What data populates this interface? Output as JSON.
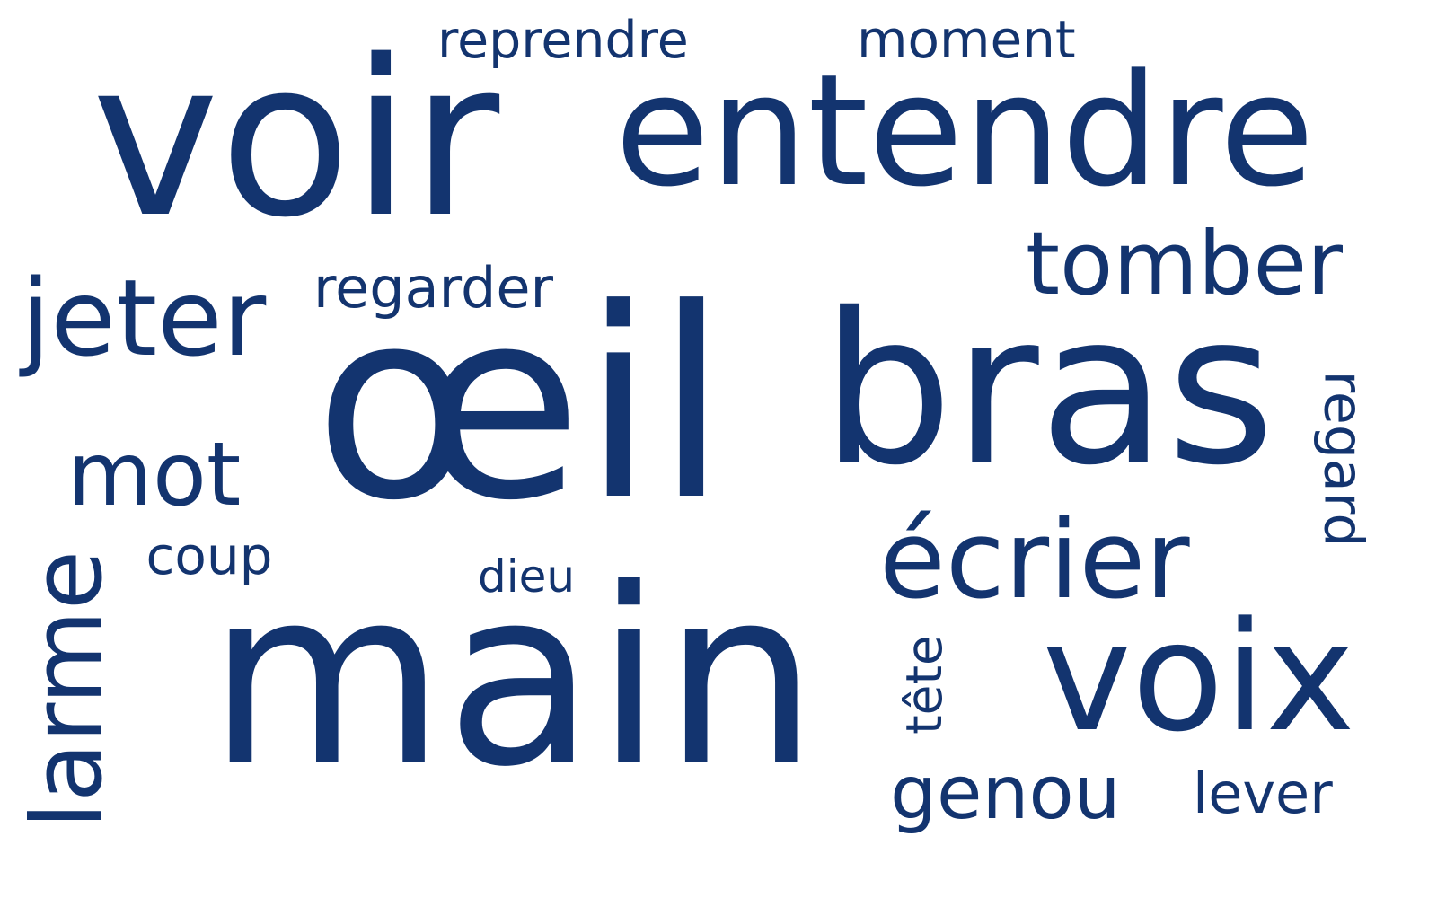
{
  "word_cloud": {
    "color": "#13346F",
    "words": [
      {
        "id": "voir",
        "text": "voir"
      },
      {
        "id": "entendre",
        "text": "entendre"
      },
      {
        "id": "reprendre",
        "text": "reprendre"
      },
      {
        "id": "moment",
        "text": "moment"
      },
      {
        "id": "jeter",
        "text": "jeter"
      },
      {
        "id": "regarder",
        "text": "regarder"
      },
      {
        "id": "tomber",
        "text": "tomber"
      },
      {
        "id": "oeil",
        "text": "œil"
      },
      {
        "id": "bras",
        "text": "bras"
      },
      {
        "id": "regard",
        "text": "regard"
      },
      {
        "id": "mot",
        "text": "mot"
      },
      {
        "id": "coup",
        "text": "coup"
      },
      {
        "id": "dieu",
        "text": "dieu"
      },
      {
        "id": "ecrier",
        "text": "écrier"
      },
      {
        "id": "larme",
        "text": "larme"
      },
      {
        "id": "main",
        "text": "main"
      },
      {
        "id": "tete",
        "text": "tête"
      },
      {
        "id": "voix",
        "text": "voix"
      },
      {
        "id": "genou",
        "text": "genou"
      },
      {
        "id": "lever",
        "text": "lever"
      }
    ]
  }
}
